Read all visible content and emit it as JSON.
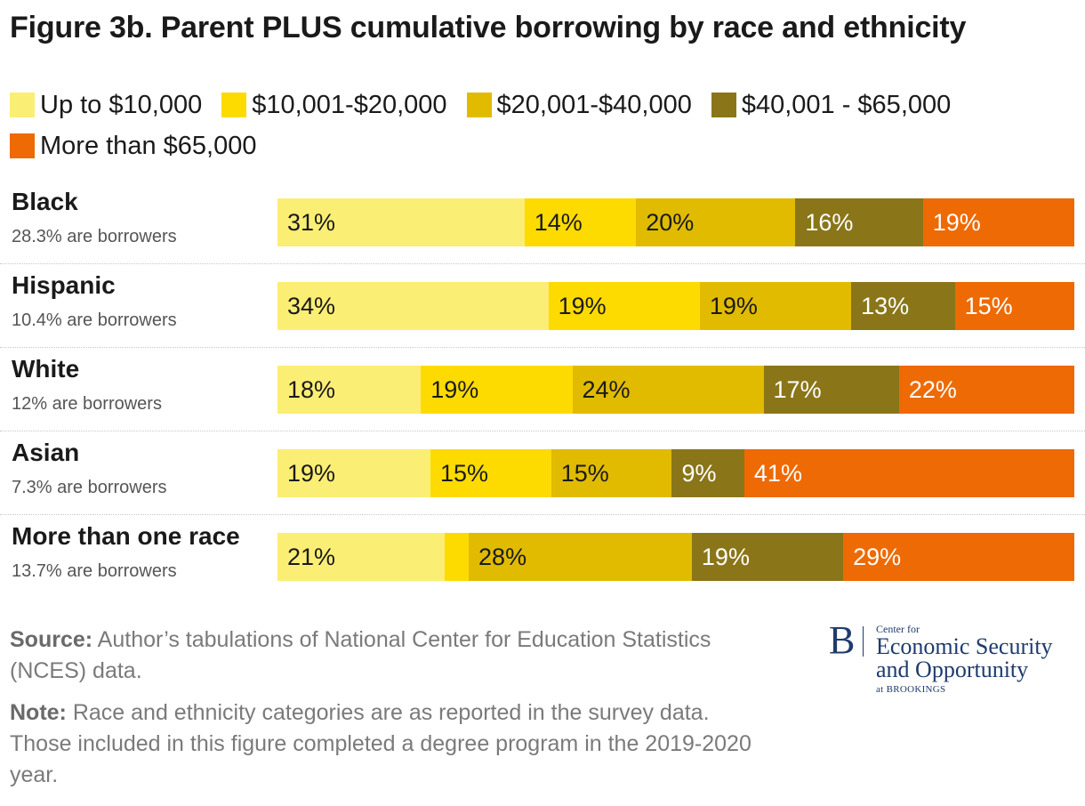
{
  "chart_data": {
    "type": "bar",
    "orientation": "horizontal",
    "stacked": true,
    "title": "Figure 3b. Parent PLUS cumulative borrowing by race and ethnicity",
    "xlabel": "",
    "ylabel": "",
    "xlim": [
      0,
      100
    ],
    "legend_position": "top",
    "series": [
      {
        "name": "Up to $10,000",
        "color": "#fbee74"
      },
      {
        "name": "$10,001-$20,000",
        "color": "#fedb00"
      },
      {
        "name": "$20,001-$40,000",
        "color": "#e0bb00"
      },
      {
        "name": "$40,001 - $65,000",
        "color": "#8a7619"
      },
      {
        "name": "More than $65,000",
        "color": "#ee6a04"
      }
    ],
    "categories": [
      {
        "name": "Black",
        "subtitle": "28.3% are borrowers",
        "values": [
          31,
          14,
          20,
          16,
          19
        ],
        "labels": [
          "31%",
          "14%",
          "20%",
          "16%",
          "19%"
        ]
      },
      {
        "name": "Hispanic",
        "subtitle": "10.4% are borrowers",
        "values": [
          34,
          19,
          19,
          13,
          15
        ],
        "labels": [
          "34%",
          "19%",
          "19%",
          "13%",
          "15%"
        ]
      },
      {
        "name": "White",
        "subtitle": "12% are borrowers",
        "values": [
          18,
          19,
          24,
          17,
          22
        ],
        "labels": [
          "18%",
          "19%",
          "24%",
          "17%",
          "22%"
        ]
      },
      {
        "name": "Asian",
        "subtitle": "7.3% are borrowers",
        "values": [
          19,
          15,
          15,
          9,
          41
        ],
        "labels": [
          "19%",
          "15%",
          "15%",
          "9%",
          "41%"
        ]
      },
      {
        "name": "More than one race",
        "subtitle": "13.7% are borrowers",
        "values": [
          21,
          3,
          28,
          19,
          29
        ],
        "labels": [
          "21%",
          "",
          "28%",
          "19%",
          "29%"
        ]
      }
    ]
  },
  "footer": {
    "source_label": "Source:",
    "source_text": "Author’s tabulations of National Center for Education Statistics (NCES) data.",
    "note_label": "Note:",
    "note_text": "Race and ethnicity categories are as reported in the survey data. Those included in this figure completed a degree program in the 2019-2020 year."
  },
  "logo": {
    "mark": "B",
    "small": "Center for",
    "line1": "Economic Security",
    "line2": "and Opportunity",
    "at": "at BROOKINGS"
  }
}
